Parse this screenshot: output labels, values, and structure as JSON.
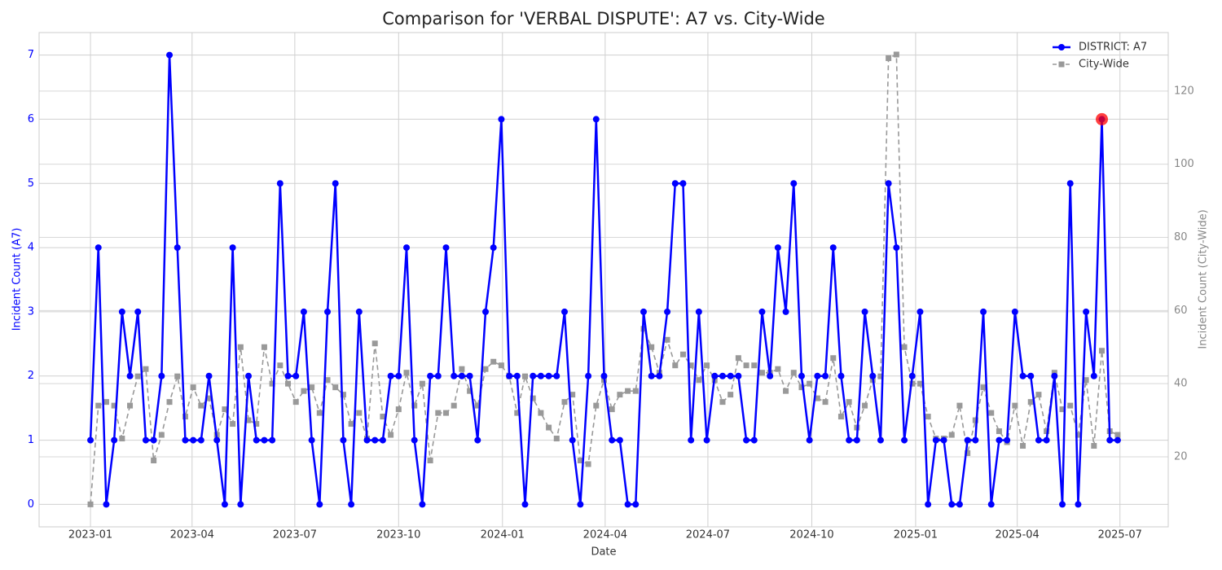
{
  "chart_data": {
    "type": "line",
    "title": "Comparison for 'VERBAL DISPUTE': A7 vs. City-Wide",
    "x_label": "Date",
    "y_label": "Incident Count (A7)",
    "y2_label": "Incident Count (City-Wide)",
    "categories": [
      null,
      null,
      null,
      null,
      null,
      null,
      null,
      null,
      null,
      null,
      null,
      null,
      null,
      null,
      null,
      null,
      null,
      null,
      null,
      null,
      null,
      null,
      null,
      null,
      null,
      null,
      null,
      null,
      null,
      null,
      null,
      null,
      null,
      null,
      null,
      null,
      null,
      null,
      null,
      null,
      null,
      null,
      null,
      null,
      null,
      null,
      null,
      null,
      null,
      null,
      null,
      null,
      null,
      null,
      null,
      null,
      null,
      null,
      null,
      null,
      null,
      null,
      null,
      null,
      null,
      null,
      null,
      null,
      null,
      null,
      null,
      null,
      null,
      null,
      null,
      null,
      null,
      null,
      null,
      null,
      null,
      null,
      null,
      null,
      null,
      null,
      null,
      null,
      null,
      null,
      null,
      null,
      null,
      null,
      null,
      null,
      null,
      null,
      null,
      null,
      null,
      null,
      null,
      null,
      null,
      null,
      null,
      null,
      null,
      null,
      null,
      null,
      null,
      null,
      null,
      null,
      null,
      null,
      null,
      null,
      null,
      null,
      null,
      null,
      null,
      null,
      null,
      null,
      null,
      null,
      null
    ],
    "xlim": [
      -6.5,
      136.4
    ],
    "xticks": [
      {
        "value": 0,
        "label": "2023-01"
      },
      {
        "value": 12.86,
        "label": "2023-04"
      },
      {
        "value": 25.86,
        "label": "2023-07"
      },
      {
        "value": 39,
        "label": "2023-10"
      },
      {
        "value": 52.14,
        "label": "2024-01"
      },
      {
        "value": 65.14,
        "label": "2024-04"
      },
      {
        "value": 78.14,
        "label": "2024-07"
      },
      {
        "value": 91.29,
        "label": "2024-10"
      },
      {
        "value": 104.43,
        "label": "2025-01"
      },
      {
        "value": 117.29,
        "label": "2025-04"
      },
      {
        "value": 130.29,
        "label": "2025-07"
      }
    ],
    "ylim": [
      -0.35,
      7.35
    ],
    "yticks": [
      0,
      1,
      2,
      3,
      4,
      5,
      6,
      7
    ],
    "y2lim": [
      0.85,
      136
    ],
    "y2ticks": [
      20,
      40,
      60,
      80,
      100,
      120
    ],
    "grid": true,
    "legend": "upper right",
    "series": [
      {
        "name": "DISTRICT: A7",
        "color": "#0000ff",
        "marker": "circle",
        "values": [
          1,
          4,
          0,
          1,
          3,
          2,
          3,
          1,
          1,
          2,
          7,
          4,
          1,
          1,
          1,
          2,
          1,
          0,
          4,
          0,
          2,
          1,
          1,
          1,
          5,
          2,
          2,
          3,
          1,
          0,
          3,
          5,
          1,
          0,
          3,
          1,
          1,
          1,
          2,
          2,
          4,
          1,
          0,
          2,
          2,
          4,
          2,
          2,
          2,
          1,
          3,
          4,
          6,
          2,
          2,
          0,
          2,
          2,
          2,
          2,
          3,
          1,
          0,
          2,
          6,
          2,
          1,
          1,
          0,
          0,
          3,
          2,
          2,
          3,
          5,
          5,
          1,
          3,
          1,
          2,
          2,
          2,
          2,
          1,
          1,
          3,
          2,
          4,
          3,
          5,
          2,
          1,
          2,
          2,
          4,
          2,
          1,
          1,
          3,
          2,
          1,
          5,
          4,
          1,
          2,
          3,
          0,
          1,
          1,
          0,
          0,
          1,
          1,
          3,
          0,
          1,
          1,
          3,
          2,
          2,
          1,
          1,
          2,
          0,
          5,
          0,
          3,
          2,
          6,
          1,
          1
        ]
      },
      {
        "name": "City-Wide",
        "color": "#999999",
        "marker": "square",
        "dashed": true,
        "axis": "y2",
        "values": [
          7,
          34,
          35,
          34,
          25,
          34,
          42,
          44,
          19,
          26,
          35,
          42,
          31,
          39,
          34,
          36,
          26,
          33,
          29,
          50,
          30,
          29,
          50,
          40,
          45,
          40,
          35,
          38,
          39,
          32,
          41,
          39,
          37,
          29,
          32,
          25,
          51,
          31,
          26,
          33,
          43,
          34,
          40,
          19,
          32,
          32,
          34,
          44,
          38,
          34,
          44,
          46,
          45,
          42,
          32,
          42,
          36,
          32,
          28,
          25,
          35,
          37,
          19,
          18,
          34,
          41,
          33,
          37,
          38,
          38,
          55,
          50,
          43,
          52,
          45,
          48,
          45,
          41,
          45,
          41,
          35,
          37,
          47,
          45,
          45,
          43,
          43,
          44,
          38,
          43,
          39,
          40,
          36,
          35,
          47,
          31,
          35,
          28,
          34,
          41,
          42,
          129,
          130,
          50,
          40,
          40,
          31,
          25,
          25,
          26,
          34,
          21,
          30,
          39,
          32,
          27,
          24,
          34,
          23,
          35,
          37,
          27,
          43,
          33,
          34,
          26,
          41,
          23,
          49,
          27,
          26
        ]
      }
    ],
    "highlight": {
      "index": 128,
      "color": "#ff0000"
    }
  }
}
